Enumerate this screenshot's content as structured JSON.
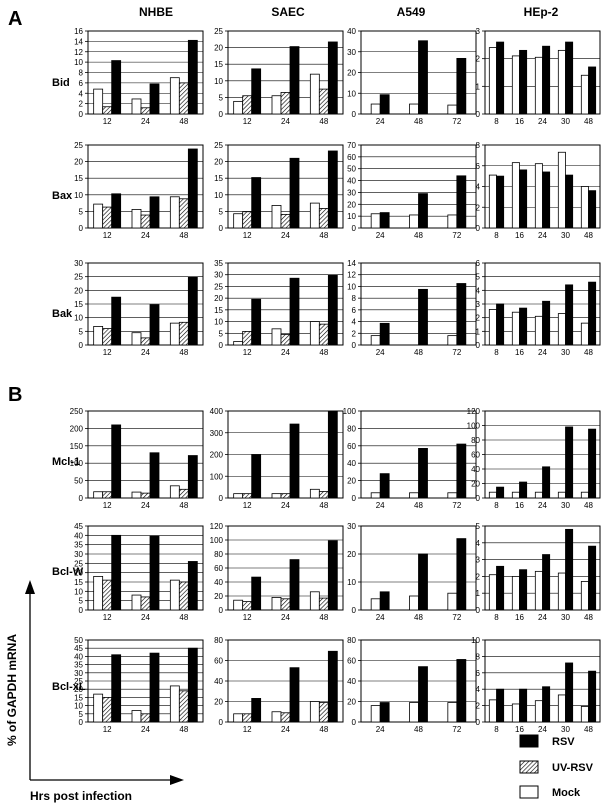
{
  "figure": {
    "panels": [
      "A",
      "B"
    ],
    "cell_columns": [
      "NHBE",
      "SAEC",
      "A549",
      "HEp-2"
    ],
    "rows_A": [
      "Bid",
      "Bax",
      "Bak"
    ],
    "rows_B": [
      "Mcl-1",
      "Bcl-W",
      "Bcl-xL"
    ],
    "y_axis_label": "% of GAPDH mRNA",
    "x_axis_label": "Hrs post infection",
    "legend": [
      {
        "name": "RSV",
        "color": "#000000",
        "pattern": "solid"
      },
      {
        "name": "UV-RSV",
        "color": "#ffffff",
        "pattern": "hatch"
      },
      {
        "name": "Mock",
        "color": "#ffffff",
        "pattern": "empty"
      }
    ]
  },
  "chart_data": [
    {
      "type": "bar",
      "row": "Bid",
      "column": "NHBE",
      "categories": [
        "12",
        "24",
        "48"
      ],
      "ylim": [
        0,
        16
      ],
      "yticks": [
        "0",
        "2",
        "4",
        "6",
        "8",
        "10",
        "12",
        "14",
        "16"
      ],
      "series": [
        {
          "name": "Mock",
          "values": [
            4.8,
            2.9,
            7
          ]
        },
        {
          "name": "UV-RSV",
          "values": [
            1.4,
            1.2,
            6
          ]
        },
        {
          "name": "RSV",
          "values": [
            10.3,
            5.8,
            14.2
          ]
        }
      ]
    },
    {
      "type": "bar",
      "row": "Bid",
      "column": "SAEC",
      "categories": [
        "12",
        "24",
        "48"
      ],
      "ylim": [
        0,
        25
      ],
      "yticks": [
        "0",
        "5",
        "10",
        "15",
        "20",
        "25"
      ],
      "series": [
        {
          "name": "Mock",
          "values": [
            3.8,
            5.5,
            12
          ]
        },
        {
          "name": "UV-RSV",
          "values": [
            5.5,
            6.5,
            7.5
          ]
        },
        {
          "name": "RSV",
          "values": [
            13.6,
            20.3,
            21.7
          ]
        }
      ]
    },
    {
      "type": "bar",
      "row": "Bid",
      "column": "A549",
      "categories": [
        "24",
        "48",
        "72"
      ],
      "ylim": [
        0,
        40
      ],
      "yticks": [
        "0",
        "10",
        "20",
        "30",
        "40"
      ],
      "series": [
        {
          "name": "Mock",
          "values": [
            4.8,
            4.8,
            4.3
          ]
        },
        {
          "name": "RSV",
          "values": [
            9.3,
            35.3,
            26.8
          ]
        }
      ]
    },
    {
      "type": "bar",
      "row": "Bid",
      "column": "HEp-2",
      "categories": [
        "8",
        "16",
        "24",
        "30",
        "48"
      ],
      "ylim": [
        0,
        3
      ],
      "yticks": [
        "0",
        "1",
        "2",
        "3"
      ],
      "series": [
        {
          "name": "Mock",
          "values": [
            2.4,
            2.1,
            2.05,
            2.3,
            1.4
          ]
        },
        {
          "name": "RSV",
          "values": [
            2.6,
            2.3,
            2.45,
            2.6,
            1.7
          ]
        }
      ]
    },
    {
      "type": "bar",
      "row": "Bax",
      "column": "NHBE",
      "categories": [
        "12",
        "24",
        "48"
      ],
      "ylim": [
        0,
        25
      ],
      "yticks": [
        "0",
        "5",
        "10",
        "15",
        "20",
        "25"
      ],
      "series": [
        {
          "name": "Mock",
          "values": [
            7.2,
            5.6,
            9.4
          ]
        },
        {
          "name": "UV-RSV",
          "values": [
            6.3,
            3.9,
            8.8
          ]
        },
        {
          "name": "RSV",
          "values": [
            10.3,
            9.4,
            23.8
          ]
        }
      ]
    },
    {
      "type": "bar",
      "row": "Bax",
      "column": "SAEC",
      "categories": [
        "12",
        "24",
        "48"
      ],
      "ylim": [
        0,
        25
      ],
      "yticks": [
        "0",
        "5",
        "10",
        "15",
        "20",
        "25"
      ],
      "series": [
        {
          "name": "Mock",
          "values": [
            4.3,
            6.8,
            7.5
          ]
        },
        {
          "name": "UV-RSV",
          "values": [
            4.9,
            4.1,
            5.9
          ]
        },
        {
          "name": "RSV",
          "values": [
            15.2,
            21,
            23.2
          ]
        }
      ]
    },
    {
      "type": "bar",
      "row": "Bax",
      "column": "A549",
      "categories": [
        "24",
        "48",
        "72"
      ],
      "ylim": [
        0,
        70
      ],
      "yticks": [
        "0",
        "10",
        "20",
        "30",
        "40",
        "50",
        "60",
        "70"
      ],
      "series": [
        {
          "name": "Mock",
          "values": [
            12,
            11,
            11
          ]
        },
        {
          "name": "RSV",
          "values": [
            13,
            29,
            44
          ]
        }
      ]
    },
    {
      "type": "bar",
      "row": "Bax",
      "column": "HEp-2",
      "categories": [
        "8",
        "16",
        "24",
        "30",
        "48"
      ],
      "ylim": [
        0,
        8
      ],
      "yticks": [
        "0",
        "2",
        "4",
        "6",
        "8"
      ],
      "series": [
        {
          "name": "Mock",
          "values": [
            5.1,
            6.3,
            6.2,
            7.3,
            4
          ]
        },
        {
          "name": "RSV",
          "values": [
            5,
            5.6,
            5.4,
            5.1,
            3.6
          ]
        }
      ]
    },
    {
      "type": "bar",
      "row": "Bak",
      "column": "NHBE",
      "categories": [
        "12",
        "24",
        "48"
      ],
      "ylim": [
        0,
        30
      ],
      "yticks": [
        "0",
        "5",
        "10",
        "15",
        "20",
        "25",
        "30"
      ],
      "series": [
        {
          "name": "Mock",
          "values": [
            6.8,
            4.5,
            8
          ]
        },
        {
          "name": "UV-RSV",
          "values": [
            6,
            2.6,
            8.3
          ]
        },
        {
          "name": "RSV",
          "values": [
            17.5,
            14.8,
            24.8
          ]
        }
      ]
    },
    {
      "type": "bar",
      "row": "Bak",
      "column": "SAEC",
      "categories": [
        "12",
        "24",
        "48"
      ],
      "ylim": [
        0,
        35
      ],
      "yticks": [
        "0",
        "5",
        "10",
        "15",
        "20",
        "25",
        "30",
        "35"
      ],
      "series": [
        {
          "name": "Mock",
          "values": [
            1.5,
            6.9,
            10
          ]
        },
        {
          "name": "UV-RSV",
          "values": [
            5.8,
            4.5,
            8.9
          ]
        },
        {
          "name": "RSV",
          "values": [
            19.5,
            28.5,
            29.7
          ]
        }
      ]
    },
    {
      "type": "bar",
      "row": "Bak",
      "column": "A549",
      "categories": [
        "24",
        "48",
        "72"
      ],
      "ylim": [
        0,
        14
      ],
      "yticks": [
        "0",
        "2",
        "4",
        "6",
        "8",
        "10",
        "12",
        "14"
      ],
      "series": [
        {
          "name": "Mock",
          "values": [
            1.6,
            0,
            1.6
          ]
        },
        {
          "name": "RSV",
          "values": [
            3.7,
            9.5,
            10.5
          ]
        }
      ]
    },
    {
      "type": "bar",
      "row": "Bak",
      "column": "HEp-2",
      "categories": [
        "8",
        "16",
        "24",
        "30",
        "48"
      ],
      "ylim": [
        0,
        6
      ],
      "yticks": [
        "0",
        "1",
        "2",
        "3",
        "4",
        "5",
        "6"
      ],
      "series": [
        {
          "name": "Mock",
          "values": [
            2.6,
            2.4,
            2.1,
            2.3,
            1.6
          ]
        },
        {
          "name": "RSV",
          "values": [
            3,
            2.7,
            3.2,
            4.4,
            4.6
          ]
        }
      ]
    },
    {
      "type": "bar",
      "row": "Mcl-1",
      "column": "NHBE",
      "categories": [
        "12",
        "24",
        "48"
      ],
      "ylim": [
        0,
        250
      ],
      "yticks": [
        "0",
        "50",
        "100",
        "150",
        "200",
        "250"
      ],
      "series": [
        {
          "name": "Mock",
          "values": [
            18,
            17,
            35
          ]
        },
        {
          "name": "UV-RSV",
          "values": [
            18,
            14,
            25
          ]
        },
        {
          "name": "RSV",
          "values": [
            210,
            130,
            122
          ]
        }
      ]
    },
    {
      "type": "bar",
      "row": "Mcl-1",
      "column": "SAEC",
      "categories": [
        "12",
        "24",
        "48"
      ],
      "ylim": [
        0,
        400
      ],
      "yticks": [
        "0",
        "100",
        "200",
        "300",
        "400"
      ],
      "series": [
        {
          "name": "Mock",
          "values": [
            20,
            20,
            40
          ]
        },
        {
          "name": "UV-RSV",
          "values": [
            20,
            20,
            30
          ]
        },
        {
          "name": "RSV",
          "values": [
            200,
            340,
            398
          ]
        }
      ]
    },
    {
      "type": "bar",
      "row": "Mcl-1",
      "column": "A549",
      "categories": [
        "24",
        "48",
        "72"
      ],
      "ylim": [
        0,
        100
      ],
      "yticks": [
        "0",
        "20",
        "40",
        "60",
        "80",
        "100"
      ],
      "series": [
        {
          "name": "Mock",
          "values": [
            6,
            6,
            6
          ]
        },
        {
          "name": "RSV",
          "values": [
            28,
            57,
            62
          ]
        }
      ]
    },
    {
      "type": "bar",
      "row": "Mcl-1",
      "column": "HEp-2",
      "categories": [
        "8",
        "16",
        "24",
        "30",
        "48"
      ],
      "ylim": [
        0,
        120
      ],
      "yticks": [
        "0",
        "20",
        "40",
        "60",
        "80",
        "100",
        "120"
      ],
      "series": [
        {
          "name": "Mock",
          "values": [
            8,
            8,
            8,
            8,
            8
          ]
        },
        {
          "name": "RSV",
          "values": [
            15,
            22,
            43,
            98,
            95
          ]
        }
      ]
    },
    {
      "type": "bar",
      "row": "Bcl-W",
      "column": "NHBE",
      "categories": [
        "12",
        "24",
        "48"
      ],
      "ylim": [
        0,
        45
      ],
      "yticks": [
        "0",
        "5",
        "10",
        "15",
        "20",
        "25",
        "30",
        "35",
        "40",
        "45"
      ],
      "series": [
        {
          "name": "Mock",
          "values": [
            18,
            8,
            16
          ]
        },
        {
          "name": "UV-RSV",
          "values": [
            16,
            7,
            15
          ]
        },
        {
          "name": "RSV",
          "values": [
            40,
            39.5,
            26
          ]
        }
      ]
    },
    {
      "type": "bar",
      "row": "Bcl-W",
      "column": "SAEC",
      "categories": [
        "12",
        "24",
        "48"
      ],
      "ylim": [
        0,
        120
      ],
      "yticks": [
        "0",
        "20",
        "40",
        "60",
        "80",
        "100",
        "120"
      ],
      "series": [
        {
          "name": "Mock",
          "values": [
            14,
            18,
            26
          ]
        },
        {
          "name": "UV-RSV",
          "values": [
            12,
            16,
            17
          ]
        },
        {
          "name": "RSV",
          "values": [
            47,
            72,
            99
          ]
        }
      ]
    },
    {
      "type": "bar",
      "row": "Bcl-W",
      "column": "A549",
      "categories": [
        "24",
        "48",
        "72"
      ],
      "ylim": [
        0,
        30
      ],
      "yticks": [
        "0",
        "10",
        "20",
        "30"
      ],
      "series": [
        {
          "name": "Mock",
          "values": [
            4,
            5,
            6
          ]
        },
        {
          "name": "RSV",
          "values": [
            6.5,
            20,
            25.5
          ]
        }
      ]
    },
    {
      "type": "bar",
      "row": "Bcl-W",
      "column": "HEp-2",
      "categories": [
        "8",
        "16",
        "24",
        "30",
        "48"
      ],
      "ylim": [
        0,
        5
      ],
      "yticks": [
        "0",
        "1",
        "2",
        "3",
        "4",
        "5"
      ],
      "series": [
        {
          "name": "Mock",
          "values": [
            2.1,
            2.0,
            2.3,
            2.2,
            1.7
          ]
        },
        {
          "name": "RSV",
          "values": [
            2.6,
            2.4,
            3.3,
            4.8,
            3.8
          ]
        }
      ]
    },
    {
      "type": "bar",
      "row": "Bcl-xL",
      "column": "NHBE",
      "categories": [
        "12",
        "24",
        "48"
      ],
      "ylim": [
        0,
        50
      ],
      "yticks": [
        "0",
        "5",
        "10",
        "15",
        "20",
        "25",
        "30",
        "35",
        "40",
        "45",
        "50"
      ],
      "series": [
        {
          "name": "Mock",
          "values": [
            17,
            7,
            22
          ]
        },
        {
          "name": "UV-RSV",
          "values": [
            15,
            5,
            19
          ]
        },
        {
          "name": "RSV",
          "values": [
            41,
            42,
            45
          ]
        }
      ]
    },
    {
      "type": "bar",
      "row": "Bcl-xL",
      "column": "SAEC",
      "categories": [
        "12",
        "24",
        "48"
      ],
      "ylim": [
        0,
        80
      ],
      "yticks": [
        "0",
        "20",
        "40",
        "60",
        "80"
      ],
      "series": [
        {
          "name": "Mock",
          "values": [
            8,
            10,
            20
          ]
        },
        {
          "name": "UV-RSV",
          "values": [
            8,
            9,
            19
          ]
        },
        {
          "name": "RSV",
          "values": [
            23,
            53,
            69
          ]
        }
      ]
    },
    {
      "type": "bar",
      "row": "Bcl-xL",
      "column": "A549",
      "categories": [
        "24",
        "48",
        "72"
      ],
      "ylim": [
        0,
        80
      ],
      "yticks": [
        "0",
        "20",
        "40",
        "60",
        "80"
      ],
      "series": [
        {
          "name": "Mock",
          "values": [
            16,
            19,
            19
          ]
        },
        {
          "name": "RSV",
          "values": [
            19,
            54,
            61
          ]
        }
      ]
    },
    {
      "type": "bar",
      "row": "Bcl-xL",
      "column": "HEp-2",
      "categories": [
        "8",
        "16",
        "24",
        "30",
        "48"
      ],
      "ylim": [
        0,
        10
      ],
      "yticks": [
        "0",
        "2",
        "4",
        "6",
        "8",
        "10"
      ],
      "series": [
        {
          "name": "Mock",
          "values": [
            2.7,
            2.2,
            2.6,
            3.3,
            1.9
          ]
        },
        {
          "name": "RSV",
          "values": [
            4,
            4,
            4.3,
            7.2,
            6.2
          ]
        }
      ]
    }
  ]
}
